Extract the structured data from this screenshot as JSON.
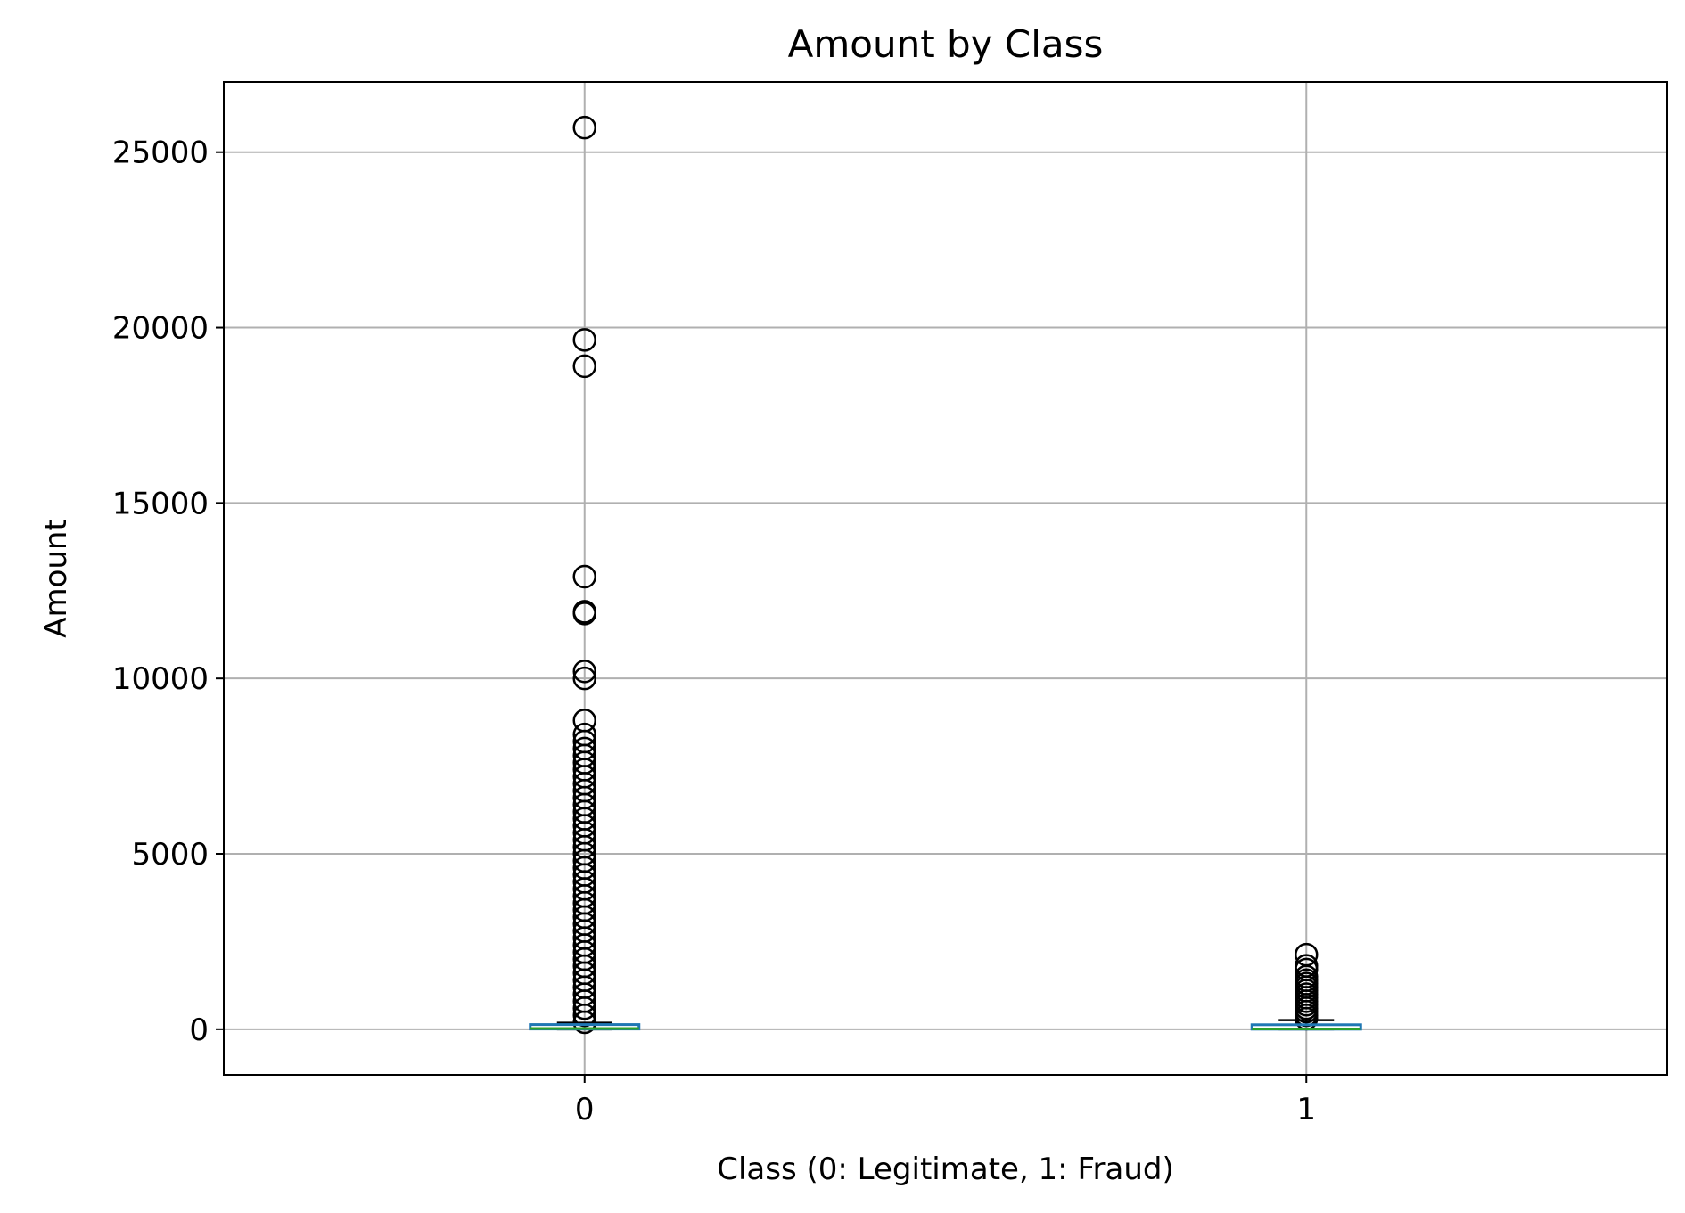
{
  "chart_data": {
    "type": "box",
    "title": "Amount by Class",
    "xlabel": "Class (0: Legitimate, 1: Fraud)",
    "ylabel": "Amount",
    "categories": [
      "0",
      "1"
    ],
    "ylim": [
      -1300,
      27000
    ],
    "yticks": [
      0,
      5000,
      10000,
      15000,
      20000,
      25000
    ],
    "grid": true,
    "colors": {
      "box": "#1f77b4",
      "median": "#2ca02c",
      "whisker": "#000000",
      "grid": "#b0b0b0"
    },
    "boxes": [
      {
        "category": "0",
        "q1": 6,
        "median": 22,
        "q3": 77,
        "whisker_low": 0,
        "whisker_high": 184,
        "outliers": [
          25700,
          19650,
          18900,
          12900,
          11900,
          11850,
          10200,
          10000,
          8800,
          8400,
          8200,
          8000,
          7800,
          7600,
          7400,
          7200,
          7000,
          6800,
          6600,
          6400,
          6200,
          6000,
          5800,
          5600,
          5400,
          5200,
          5000,
          4800,
          4600,
          4400,
          4200,
          4000,
          3800,
          3600,
          3400,
          3200,
          3000,
          2800,
          2600,
          2400,
          2200,
          2000,
          1800,
          1600,
          1400,
          1200,
          1000,
          800,
          600,
          400,
          200
        ]
      },
      {
        "category": "1",
        "q1": 1,
        "median": 9,
        "q3": 105,
        "whisker_low": 0,
        "whisker_high": 260,
        "outliers": [
          2125,
          1810,
          1700,
          1500,
          1400,
          1300,
          1200,
          1100,
          1000,
          900,
          800,
          700,
          600,
          500,
          400,
          300
        ]
      }
    ]
  }
}
